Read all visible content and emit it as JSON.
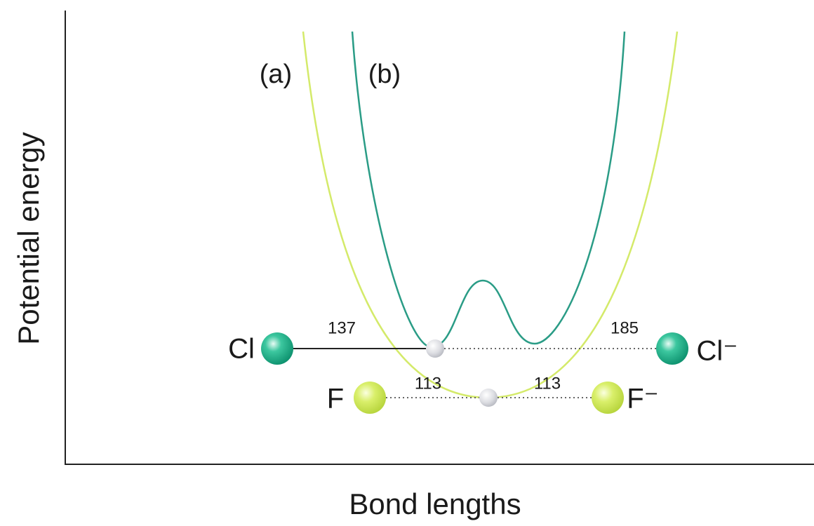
{
  "axes": {
    "y_label": "Potential energy",
    "x_label": "Bond lengths"
  },
  "curves": [
    {
      "label": "(a)"
    },
    {
      "label": "(b)"
    }
  ],
  "chlorine": {
    "left_atom": "Cl",
    "right_atom": "Cl⁻",
    "left_bond": "137",
    "right_bond": "185"
  },
  "fluorine": {
    "left_atom": "F",
    "right_atom": "F⁻",
    "left_bond": "113",
    "right_bond": "113"
  }
}
